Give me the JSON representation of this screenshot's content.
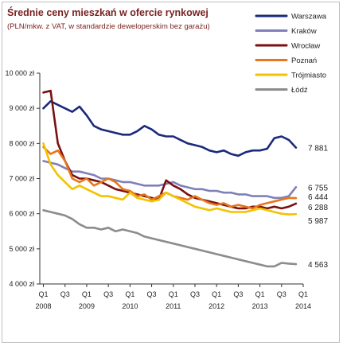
{
  "chart_data": {
    "type": "line",
    "title": "Średnie ceny mieszkań w ofercie rynkowej",
    "subtitle": "(PLN/mkw. z VAT, w standardzie deweloperskim bez garażu)",
    "xlabel": "",
    "ylabel": "",
    "ylim": [
      4000,
      10000
    ],
    "y_ticks": [
      {
        "value": 4000,
        "label": "4 000 zł"
      },
      {
        "value": 5000,
        "label": "5 000 zł"
      },
      {
        "value": 6000,
        "label": "6 000 zł"
      },
      {
        "value": 7000,
        "label": "7 000 zł"
      },
      {
        "value": 8000,
        "label": "8 000 zł"
      },
      {
        "value": 9000,
        "label": "9 000 zł"
      },
      {
        "value": 10000,
        "label": "10 000 zł"
      }
    ],
    "x_range": [
      0,
      73
    ],
    "x_ticks": [
      {
        "x": 1,
        "quarter": "Q1",
        "year": "2008"
      },
      {
        "x": 7,
        "quarter": "Q3",
        "year": ""
      },
      {
        "x": 13,
        "quarter": "Q1",
        "year": "2009"
      },
      {
        "x": 19,
        "quarter": "Q3",
        "year": ""
      },
      {
        "x": 25,
        "quarter": "Q1",
        "year": "2010"
      },
      {
        "x": 31,
        "quarter": "Q3",
        "year": ""
      },
      {
        "x": 37,
        "quarter": "Q1",
        "year": "2011"
      },
      {
        "x": 43,
        "quarter": "Q3",
        "year": ""
      },
      {
        "x": 49,
        "quarter": "Q1",
        "year": "2012"
      },
      {
        "x": 55,
        "quarter": "Q3",
        "year": ""
      },
      {
        "x": 61,
        "quarter": "Q1",
        "year": "2013"
      },
      {
        "x": 67,
        "quarter": "Q3",
        "year": ""
      },
      {
        "x": 73,
        "quarter": "Q1",
        "year": "2014"
      }
    ],
    "grid": false,
    "legend": "top-right",
    "series": [
      {
        "name": "Warszawa",
        "color": "#1b2a7a",
        "end_label": "7 881",
        "points": [
          [
            1,
            9000
          ],
          [
            3,
            9200
          ],
          [
            5,
            9100
          ],
          [
            7,
            9000
          ],
          [
            9,
            8900
          ],
          [
            11,
            9050
          ],
          [
            13,
            8800
          ],
          [
            15,
            8500
          ],
          [
            17,
            8400
          ],
          [
            19,
            8350
          ],
          [
            21,
            8300
          ],
          [
            23,
            8250
          ],
          [
            25,
            8250
          ],
          [
            27,
            8350
          ],
          [
            29,
            8500
          ],
          [
            31,
            8400
          ],
          [
            33,
            8250
          ],
          [
            35,
            8200
          ],
          [
            37,
            8200
          ],
          [
            39,
            8100
          ],
          [
            41,
            8000
          ],
          [
            43,
            7950
          ],
          [
            45,
            7900
          ],
          [
            47,
            7800
          ],
          [
            49,
            7750
          ],
          [
            51,
            7800
          ],
          [
            53,
            7700
          ],
          [
            55,
            7650
          ],
          [
            57,
            7750
          ],
          [
            59,
            7800
          ],
          [
            61,
            7800
          ],
          [
            63,
            7850
          ],
          [
            65,
            8150
          ],
          [
            67,
            8200
          ],
          [
            69,
            8100
          ],
          [
            71,
            7881
          ]
        ]
      },
      {
        "name": "Kraków",
        "color": "#8080b8",
        "end_label": "6 755",
        "points": [
          [
            1,
            7500
          ],
          [
            3,
            7450
          ],
          [
            5,
            7400
          ],
          [
            7,
            7300
          ],
          [
            9,
            7200
          ],
          [
            11,
            7200
          ],
          [
            13,
            7150
          ],
          [
            15,
            7100
          ],
          [
            17,
            7000
          ],
          [
            19,
            7000
          ],
          [
            21,
            6950
          ],
          [
            23,
            6900
          ],
          [
            25,
            6900
          ],
          [
            27,
            6850
          ],
          [
            29,
            6800
          ],
          [
            31,
            6800
          ],
          [
            33,
            6800
          ],
          [
            35,
            6850
          ],
          [
            37,
            6900
          ],
          [
            39,
            6800
          ],
          [
            41,
            6750
          ],
          [
            43,
            6700
          ],
          [
            45,
            6700
          ],
          [
            47,
            6650
          ],
          [
            49,
            6650
          ],
          [
            51,
            6600
          ],
          [
            53,
            6600
          ],
          [
            55,
            6550
          ],
          [
            57,
            6550
          ],
          [
            59,
            6500
          ],
          [
            61,
            6500
          ],
          [
            63,
            6500
          ],
          [
            65,
            6450
          ],
          [
            67,
            6450
          ],
          [
            69,
            6500
          ],
          [
            71,
            6755
          ]
        ]
      },
      {
        "name": "Wrocław",
        "color": "#7a1010",
        "end_label": "6 288",
        "points": [
          [
            1,
            9450
          ],
          [
            3,
            9500
          ],
          [
            5,
            8000
          ],
          [
            7,
            7500
          ],
          [
            9,
            7100
          ],
          [
            11,
            7000
          ],
          [
            13,
            7000
          ],
          [
            15,
            6950
          ],
          [
            17,
            6900
          ],
          [
            19,
            6800
          ],
          [
            21,
            6700
          ],
          [
            23,
            6650
          ],
          [
            25,
            6600
          ],
          [
            27,
            6550
          ],
          [
            29,
            6500
          ],
          [
            31,
            6450
          ],
          [
            33,
            6400
          ],
          [
            35,
            6950
          ],
          [
            37,
            6800
          ],
          [
            39,
            6700
          ],
          [
            41,
            6550
          ],
          [
            43,
            6450
          ],
          [
            45,
            6400
          ],
          [
            47,
            6350
          ],
          [
            49,
            6300
          ],
          [
            51,
            6250
          ],
          [
            53,
            6200
          ],
          [
            55,
            6150
          ],
          [
            57,
            6150
          ],
          [
            59,
            6200
          ],
          [
            61,
            6200
          ],
          [
            63,
            6150
          ],
          [
            65,
            6200
          ],
          [
            67,
            6150
          ],
          [
            69,
            6200
          ],
          [
            71,
            6288
          ]
        ]
      },
      {
        "name": "Poznań",
        "color": "#e8761a",
        "end_label": "6 444",
        "points": [
          [
            1,
            7900
          ],
          [
            3,
            7700
          ],
          [
            5,
            7800
          ],
          [
            7,
            7500
          ],
          [
            9,
            7000
          ],
          [
            11,
            6900
          ],
          [
            13,
            7000
          ],
          [
            15,
            6800
          ],
          [
            17,
            6900
          ],
          [
            19,
            7000
          ],
          [
            21,
            6900
          ],
          [
            23,
            6700
          ],
          [
            25,
            6650
          ],
          [
            27,
            6500
          ],
          [
            29,
            6550
          ],
          [
            31,
            6400
          ],
          [
            33,
            6500
          ],
          [
            35,
            6600
          ],
          [
            37,
            6500
          ],
          [
            39,
            6450
          ],
          [
            41,
            6400
          ],
          [
            43,
            6500
          ],
          [
            45,
            6400
          ],
          [
            47,
            6300
          ],
          [
            49,
            6250
          ],
          [
            51,
            6300
          ],
          [
            53,
            6200
          ],
          [
            55,
            6250
          ],
          [
            57,
            6200
          ],
          [
            59,
            6150
          ],
          [
            61,
            6250
          ],
          [
            63,
            6300
          ],
          [
            65,
            6350
          ],
          [
            67,
            6400
          ],
          [
            69,
            6450
          ],
          [
            71,
            6444
          ]
        ]
      },
      {
        "name": "Trójmiasto",
        "color": "#f2c300",
        "end_label": "5 987",
        "points": [
          [
            1,
            8000
          ],
          [
            3,
            7400
          ],
          [
            5,
            7100
          ],
          [
            7,
            6900
          ],
          [
            9,
            6700
          ],
          [
            11,
            6800
          ],
          [
            13,
            6700
          ],
          [
            15,
            6600
          ],
          [
            17,
            6500
          ],
          [
            19,
            6500
          ],
          [
            21,
            6450
          ],
          [
            23,
            6400
          ],
          [
            25,
            6600
          ],
          [
            27,
            6450
          ],
          [
            29,
            6400
          ],
          [
            31,
            6350
          ],
          [
            33,
            6400
          ],
          [
            35,
            6600
          ],
          [
            37,
            6500
          ],
          [
            39,
            6400
          ],
          [
            41,
            6300
          ],
          [
            43,
            6200
          ],
          [
            45,
            6150
          ],
          [
            47,
            6100
          ],
          [
            49,
            6150
          ],
          [
            51,
            6100
          ],
          [
            53,
            6050
          ],
          [
            55,
            6050
          ],
          [
            57,
            6050
          ],
          [
            59,
            6100
          ],
          [
            61,
            6150
          ],
          [
            63,
            6100
          ],
          [
            65,
            6050
          ],
          [
            67,
            6000
          ],
          [
            69,
            5980
          ],
          [
            71,
            5987
          ]
        ]
      },
      {
        "name": "Łódź",
        "color": "#8c8c8c",
        "end_label": "4 563",
        "points": [
          [
            1,
            6100
          ],
          [
            3,
            6050
          ],
          [
            5,
            6000
          ],
          [
            7,
            5950
          ],
          [
            9,
            5850
          ],
          [
            11,
            5700
          ],
          [
            13,
            5600
          ],
          [
            15,
            5600
          ],
          [
            17,
            5550
          ],
          [
            19,
            5600
          ],
          [
            21,
            5500
          ],
          [
            23,
            5550
          ],
          [
            25,
            5500
          ],
          [
            27,
            5450
          ],
          [
            29,
            5350
          ],
          [
            31,
            5300
          ],
          [
            33,
            5250
          ],
          [
            35,
            5200
          ],
          [
            37,
            5150
          ],
          [
            39,
            5100
          ],
          [
            41,
            5050
          ],
          [
            43,
            5000
          ],
          [
            45,
            4950
          ],
          [
            47,
            4900
          ],
          [
            49,
            4850
          ],
          [
            51,
            4800
          ],
          [
            53,
            4750
          ],
          [
            55,
            4700
          ],
          [
            57,
            4650
          ],
          [
            59,
            4600
          ],
          [
            61,
            4550
          ],
          [
            63,
            4500
          ],
          [
            65,
            4500
          ],
          [
            67,
            4600
          ],
          [
            69,
            4580
          ],
          [
            71,
            4563
          ]
        ]
      }
    ]
  }
}
